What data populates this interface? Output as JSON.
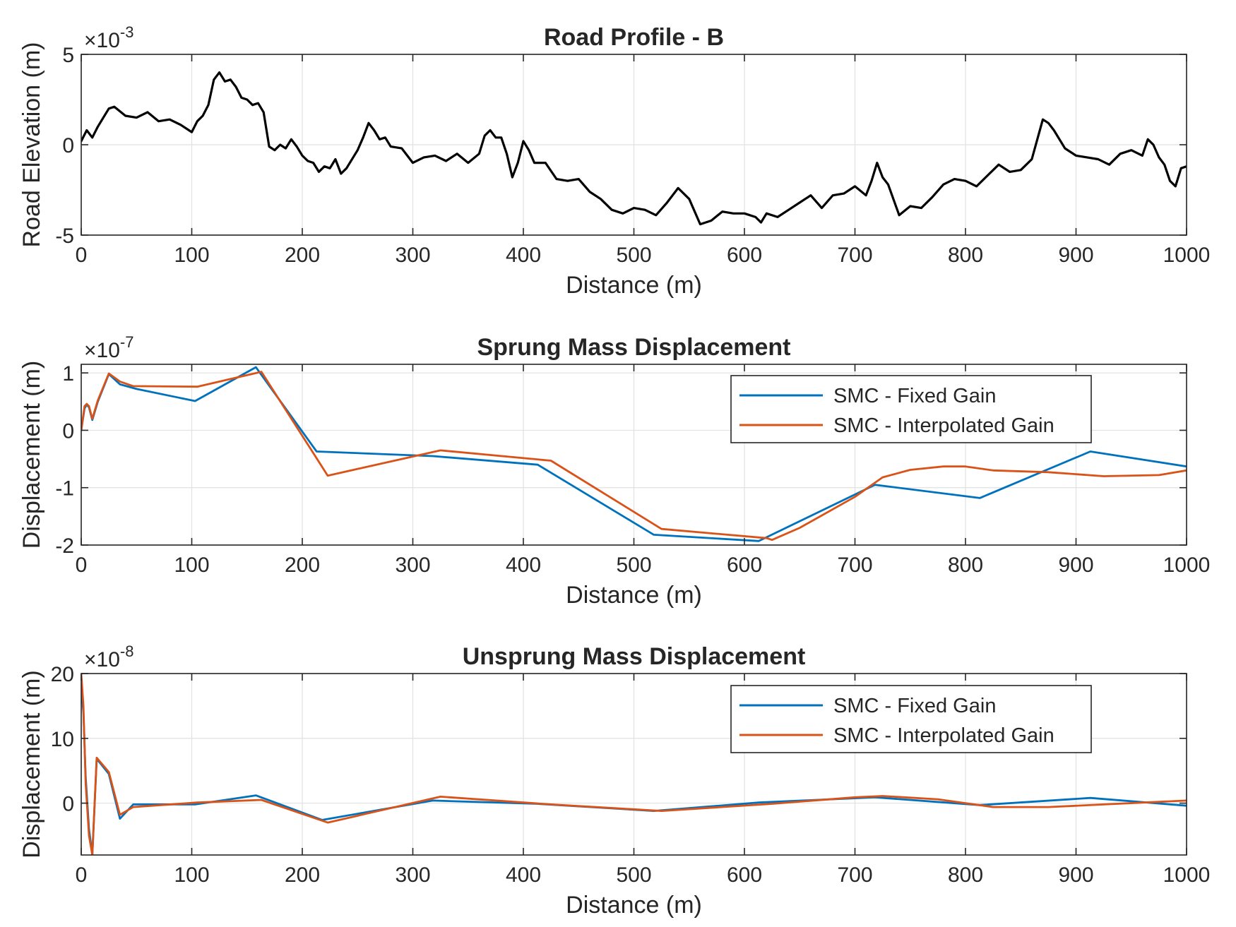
{
  "chart_data": [
    {
      "type": "line",
      "id": "road",
      "title": "Road Profile - B",
      "xlabel": "Distance (m)",
      "ylabel": "Road Elevation (m)",
      "y_exponent": "-3",
      "xlim": [
        0,
        1000
      ],
      "ylim": [
        -5,
        5
      ],
      "xticks": [
        0,
        100,
        200,
        300,
        400,
        500,
        600,
        700,
        800,
        900,
        1000
      ],
      "yticks": [
        -5,
        0,
        5
      ],
      "grid": true,
      "legend": null,
      "series": [
        {
          "color": "#000000",
          "x": [
            0,
            5,
            10,
            15,
            20,
            25,
            30,
            40,
            50,
            60,
            70,
            80,
            90,
            100,
            105,
            110,
            115,
            120,
            125,
            130,
            135,
            140,
            145,
            150,
            155,
            160,
            165,
            170,
            175,
            180,
            185,
            190,
            195,
            200,
            205,
            210,
            215,
            220,
            225,
            230,
            235,
            240,
            250,
            255,
            260,
            265,
            270,
            275,
            280,
            290,
            300,
            310,
            320,
            330,
            340,
            350,
            360,
            365,
            370,
            375,
            380,
            385,
            390,
            395,
            400,
            405,
            410,
            415,
            420,
            430,
            440,
            450,
            460,
            470,
            480,
            490,
            500,
            510,
            520,
            530,
            540,
            550,
            560,
            570,
            580,
            590,
            600,
            610,
            615,
            620,
            630,
            640,
            650,
            660,
            670,
            680,
            690,
            700,
            710,
            715,
            720,
            725,
            730,
            740,
            750,
            760,
            770,
            780,
            790,
            800,
            810,
            820,
            830,
            840,
            850,
            860,
            865,
            870,
            875,
            880,
            890,
            900,
            910,
            920,
            930,
            940,
            950,
            960,
            965,
            970,
            975,
            980,
            985,
            990,
            995,
            1000
          ],
          "y": [
            0.2,
            0.8,
            0.4,
            1.0,
            1.5,
            2.0,
            2.1,
            1.6,
            1.5,
            1.8,
            1.3,
            1.4,
            1.1,
            0.7,
            1.3,
            1.6,
            2.2,
            3.6,
            4.0,
            3.5,
            3.6,
            3.2,
            2.6,
            2.5,
            2.2,
            2.3,
            1.8,
            -0.1,
            -0.3,
            0.0,
            -0.2,
            0.3,
            -0.1,
            -0.6,
            -0.9,
            -1.0,
            -1.5,
            -1.2,
            -1.3,
            -0.8,
            -1.6,
            -1.3,
            -0.3,
            0.4,
            1.2,
            0.8,
            0.3,
            0.4,
            -0.1,
            -0.2,
            -1.0,
            -0.7,
            -0.6,
            -0.9,
            -0.5,
            -1.0,
            -0.5,
            0.5,
            0.8,
            0.4,
            0.4,
            -0.5,
            -1.8,
            -1.0,
            0.2,
            -0.3,
            -1.0,
            -1.0,
            -1.0,
            -1.9,
            -2.0,
            -1.9,
            -2.6,
            -3.0,
            -3.6,
            -3.8,
            -3.5,
            -3.6,
            -3.9,
            -3.2,
            -2.4,
            -3.0,
            -4.4,
            -4.2,
            -3.7,
            -3.8,
            -3.8,
            -4.0,
            -4.3,
            -3.8,
            -4.0,
            -3.6,
            -3.2,
            -2.8,
            -3.5,
            -2.8,
            -2.7,
            -2.3,
            -2.8,
            -2.0,
            -1.0,
            -1.8,
            -2.2,
            -3.9,
            -3.4,
            -3.5,
            -2.9,
            -2.2,
            -1.9,
            -2.0,
            -2.3,
            -1.7,
            -1.1,
            -1.5,
            -1.4,
            -0.8,
            0.3,
            1.4,
            1.2,
            0.8,
            -0.2,
            -0.6,
            -0.7,
            -0.8,
            -1.1,
            -0.5,
            -0.3,
            -0.6,
            0.3,
            0.0,
            -0.7,
            -1.1,
            -2.0,
            -2.3,
            -1.3,
            -1.2
          ]
        }
      ]
    },
    {
      "type": "line",
      "id": "sprung",
      "title": "Sprung Mass Displacement",
      "xlabel": "Distance (m)",
      "ylabel": "Displacement (m)",
      "y_exponent": "-7",
      "xlim": [
        0,
        1000
      ],
      "ylim": [
        -2,
        1.15
      ],
      "xticks": [
        0,
        100,
        200,
        300,
        400,
        500,
        600,
        700,
        800,
        900,
        1000
      ],
      "yticks": [
        -2,
        -1,
        0,
        1
      ],
      "grid": true,
      "legend": "top-right",
      "series": [
        {
          "name": "SMC - Fixed Gain",
          "color": "#0072BD",
          "x": [
            0,
            3,
            5,
            7,
            10,
            15,
            25,
            35,
            50,
            103,
            158,
            213,
            318,
            413,
            518,
            613,
            718,
            813,
            913,
            1000
          ],
          "y": [
            0,
            0.38,
            0.45,
            0.4,
            0.18,
            0.5,
            0.98,
            0.8,
            0.72,
            0.51,
            1.1,
            -0.37,
            -0.45,
            -0.6,
            -1.82,
            -1.93,
            -0.95,
            -1.18,
            -0.37,
            -0.63
          ]
        },
        {
          "name": "SMC - Interpolated Gain",
          "color": "#D95319",
          "x": [
            0,
            3,
            5,
            7,
            10,
            15,
            25,
            35,
            47,
            105,
            163,
            223,
            325,
            425,
            525,
            620,
            625,
            650,
            700,
            725,
            750,
            780,
            800,
            825,
            875,
            925,
            975,
            1000
          ],
          "y": [
            0,
            0.42,
            0.46,
            0.42,
            0.2,
            0.52,
            0.99,
            0.85,
            0.77,
            0.76,
            1.02,
            -0.79,
            -0.35,
            -0.53,
            -1.72,
            -1.88,
            -1.91,
            -1.7,
            -1.16,
            -0.82,
            -0.69,
            -0.63,
            -0.63,
            -0.7,
            -0.73,
            -0.8,
            -0.78,
            -0.7
          ]
        }
      ]
    },
    {
      "type": "line",
      "id": "unsprung",
      "title": "Unsprung Mass Displacement",
      "xlabel": "Distance (m)",
      "ylabel": "Displacement (m)",
      "y_exponent": "-8",
      "xlim": [
        0,
        1000
      ],
      "ylim": [
        -8,
        20
      ],
      "xticks": [
        0,
        100,
        200,
        300,
        400,
        500,
        600,
        700,
        800,
        900,
        1000
      ],
      "yticks": [
        0,
        10,
        20
      ],
      "grid": true,
      "legend": "top-right",
      "series": [
        {
          "name": "SMC - Fixed Gain",
          "color": "#0072BD",
          "x": [
            0,
            2,
            4,
            7,
            10,
            14,
            18,
            25,
            35,
            47,
            103,
            158,
            218,
            318,
            413,
            518,
            613,
            718,
            813,
            913,
            1000
          ],
          "y": [
            18,
            14,
            4,
            -4,
            -8,
            6.8,
            6.0,
            4.5,
            -2.4,
            -0.2,
            -0.2,
            1.2,
            -2.6,
            0.4,
            -0.1,
            -1.2,
            0.1,
            0.9,
            -0.3,
            0.8,
            -0.4
          ]
        },
        {
          "name": "SMC - Interpolated Gain",
          "color": "#D95319",
          "x": [
            0,
            2,
            4,
            7,
            10,
            14,
            18,
            25,
            35,
            47,
            105,
            163,
            223,
            325,
            425,
            525,
            625,
            700,
            725,
            775,
            800,
            825,
            875,
            925,
            1000
          ],
          "y": [
            20,
            15,
            3,
            -5,
            -8,
            7.0,
            6.2,
            4.8,
            -1.8,
            -0.6,
            0.1,
            0.5,
            -3.0,
            1.0,
            -0.2,
            -1.2,
            -0.1,
            0.9,
            1.1,
            0.6,
            0.0,
            -0.6,
            -0.6,
            -0.2,
            0.4
          ]
        }
      ]
    }
  ]
}
